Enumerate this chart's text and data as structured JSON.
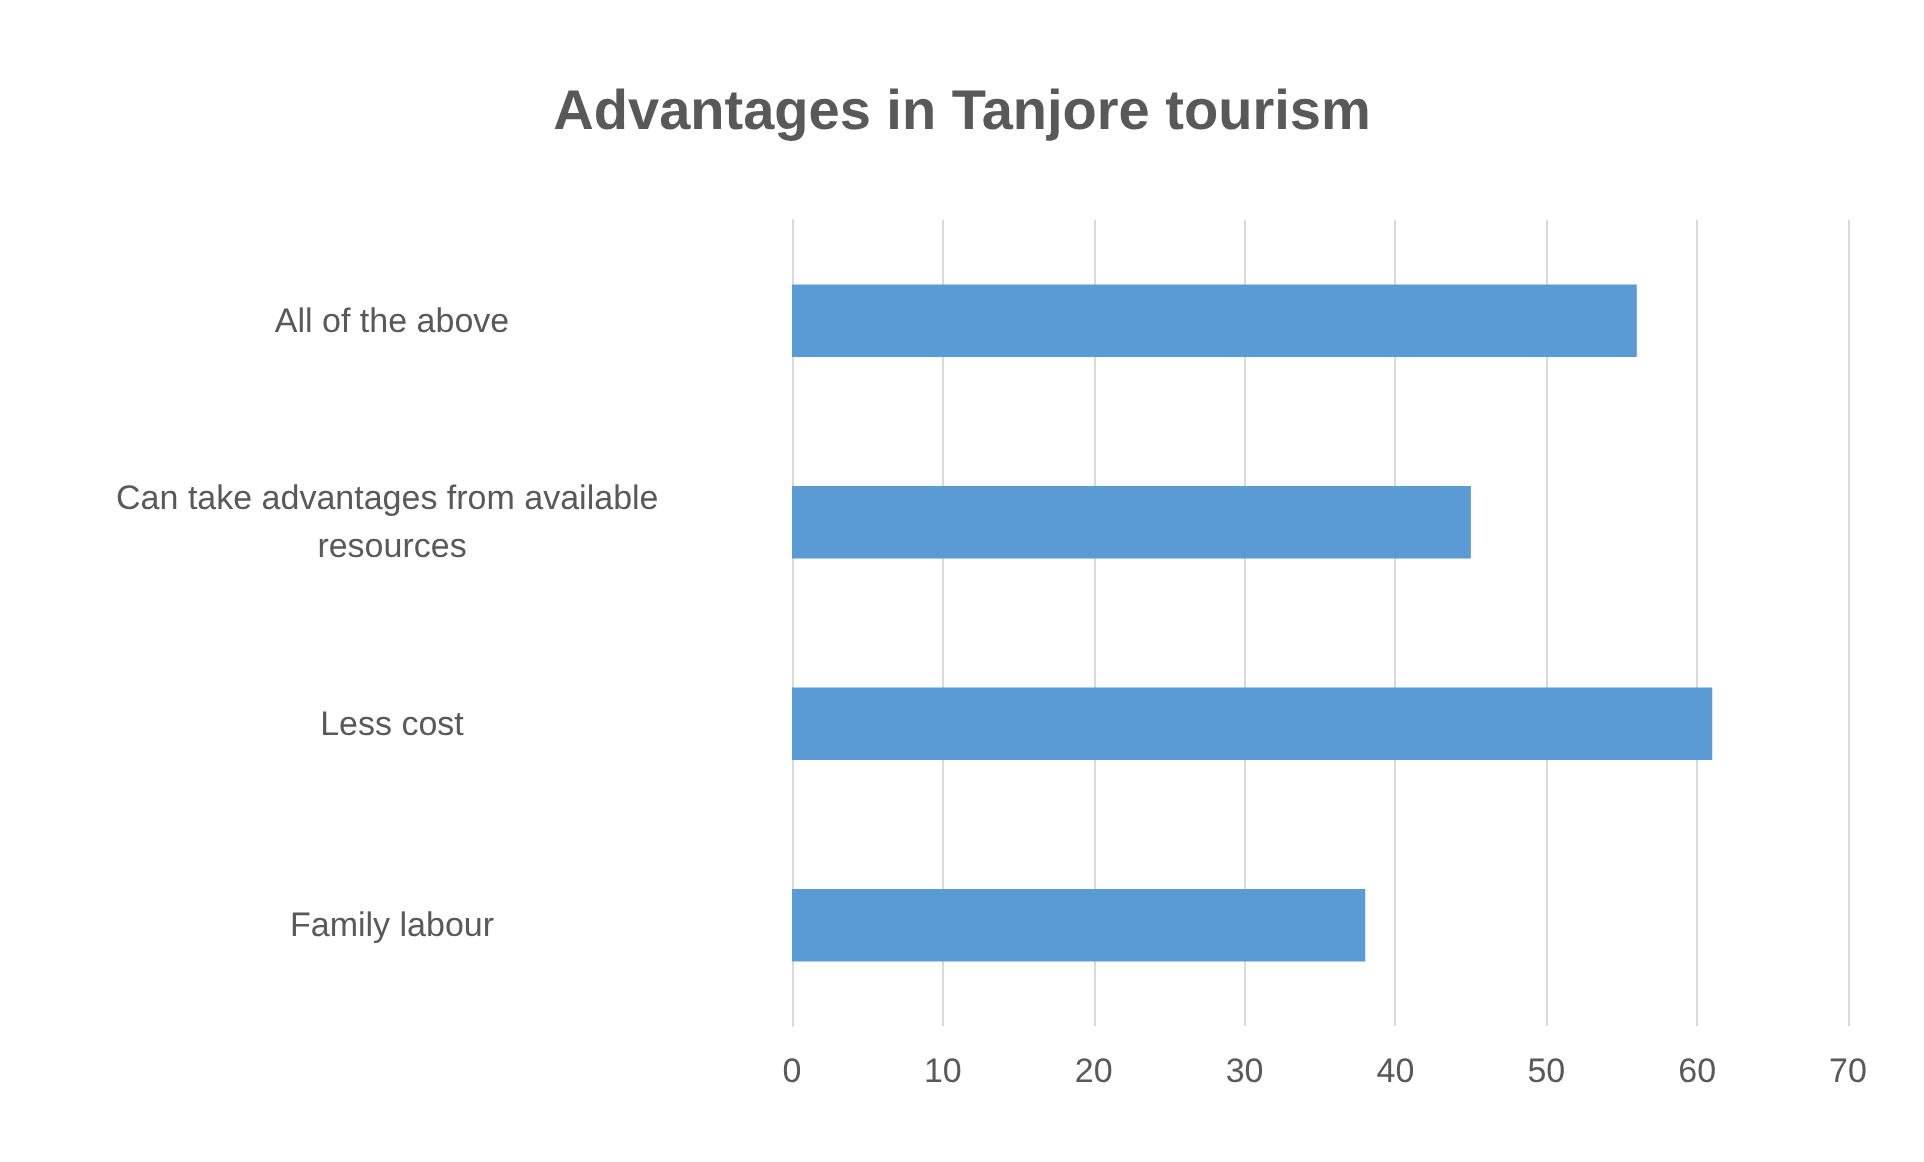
{
  "chart_data": {
    "type": "bar",
    "orientation": "horizontal",
    "title": "Advantages in Tanjore tourism",
    "categories": [
      "All of the above",
      "Can take advantages from available resources",
      "Less cost",
      "Family labour"
    ],
    "values": [
      56,
      45,
      61,
      38
    ],
    "color": "#5b9bd5",
    "xlim": [
      0,
      70
    ],
    "xticks": [
      0,
      10,
      20,
      30,
      40,
      50,
      60,
      70
    ],
    "grid": "x"
  }
}
